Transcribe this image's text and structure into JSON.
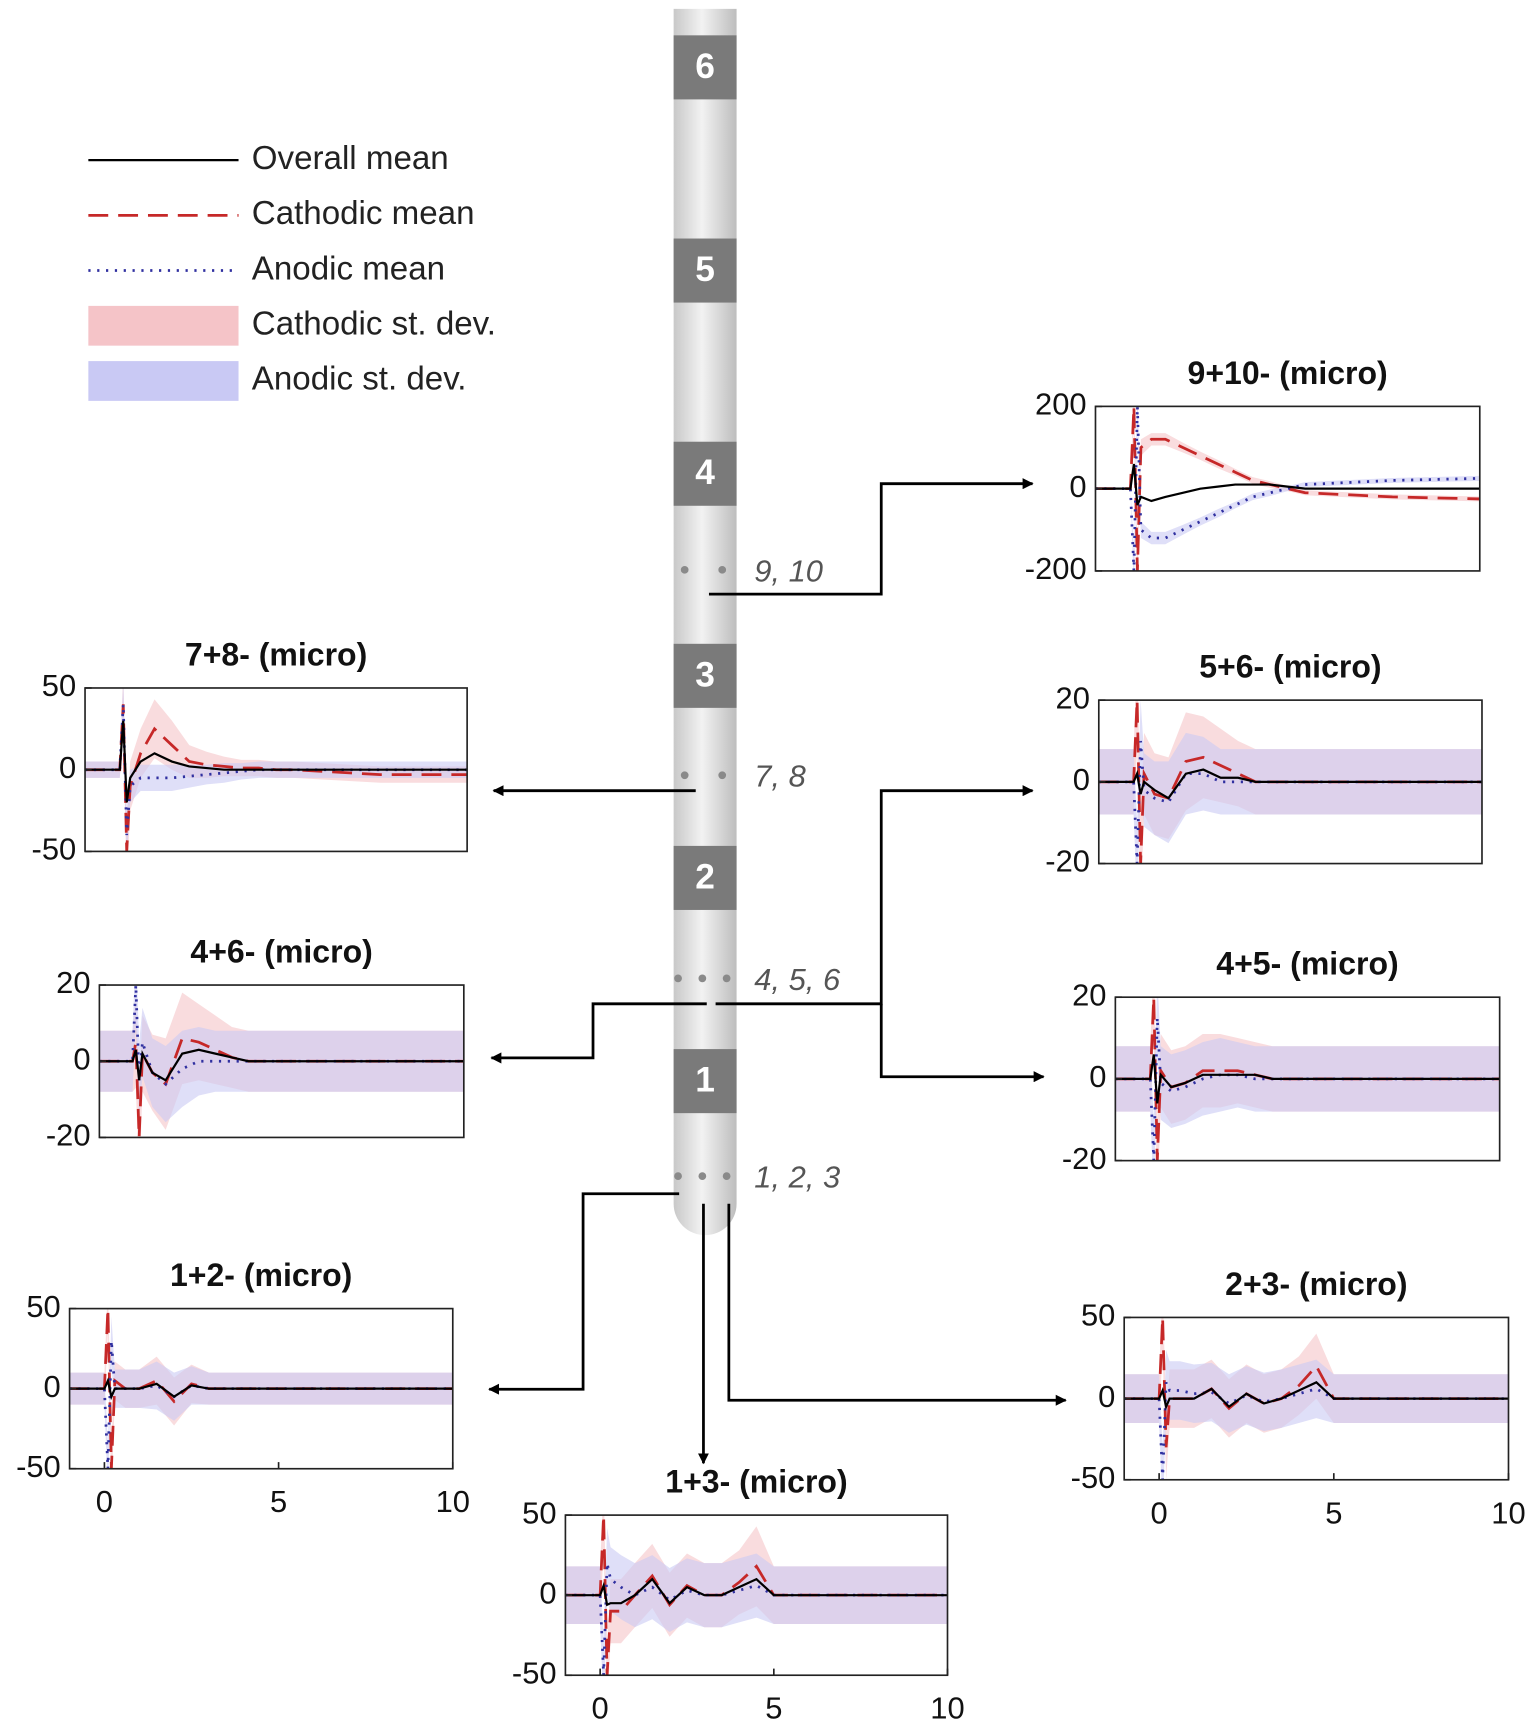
{
  "legend": [
    {
      "name": "Overall mean",
      "color": "#000000",
      "style": "solid"
    },
    {
      "name": "Cathodic mean",
      "color": "#c62828",
      "style": "dashed"
    },
    {
      "name": "Anodic mean",
      "color": "#3030a0",
      "style": "dotted"
    },
    {
      "name": "Cathodic st. dev.",
      "color": "#f5c4c8",
      "style": "band"
    },
    {
      "name": "Anodic st. dev.",
      "color": "#c9c9f4",
      "style": "band"
    }
  ],
  "electrode": {
    "segments": [
      "6",
      "5",
      "4",
      "3",
      "2",
      "1"
    ],
    "contacts": [
      "9, 10",
      "7, 8",
      "4, 5, 6",
      "1, 2, 3"
    ]
  },
  "chart_data": [
    {
      "type": "line",
      "title": "9+10- (micro)",
      "x": [
        -1,
        0,
        0.1,
        0.2,
        0.3,
        0.6,
        1,
        1.5,
        2,
        2.5,
        3,
        3.5,
        4,
        4.5,
        5,
        7.5,
        10
      ],
      "xlim": [
        -1,
        10
      ],
      "ylim": [
        -200,
        200
      ],
      "yticks": [
        200,
        0,
        -200
      ],
      "series": [
        {
          "values": [
            0,
            0,
            60,
            -40,
            -20,
            -30,
            -20,
            -10,
            0,
            5,
            10,
            10,
            10,
            5,
            0,
            0,
            0
          ]
        },
        {
          "values": [
            0,
            0,
            200,
            -200,
            100,
            120,
            120,
            100,
            80,
            60,
            40,
            20,
            10,
            0,
            -10,
            -20,
            -25
          ]
        },
        {
          "values": [
            0,
            0,
            -200,
            200,
            -100,
            -120,
            -120,
            -100,
            -80,
            -60,
            -40,
            -20,
            -10,
            0,
            10,
            20,
            25
          ]
        },
        {
          "values": [
            0,
            0,
            50,
            50,
            20,
            15,
            15,
            12,
            10,
            10,
            8,
            8,
            8,
            6,
            6,
            6,
            6
          ]
        },
        {
          "values": [
            0,
            0,
            50,
            50,
            20,
            15,
            15,
            12,
            10,
            10,
            8,
            8,
            8,
            6,
            6,
            6,
            6
          ]
        }
      ]
    },
    {
      "type": "line",
      "title": "7+8- (micro)",
      "x": [
        -1,
        0,
        0.1,
        0.2,
        0.3,
        0.6,
        1,
        1.5,
        2,
        2.5,
        3,
        3.5,
        4,
        4.5,
        5,
        7.5,
        10
      ],
      "xlim": [
        -1,
        10
      ],
      "ylim": [
        -50,
        50
      ],
      "yticks": [
        50,
        0,
        -50
      ],
      "series": [
        {
          "values": [
            0,
            0,
            30,
            -20,
            -5,
            5,
            10,
            5,
            2,
            1,
            0,
            0,
            0,
            0,
            0,
            0,
            0
          ]
        },
        {
          "values": [
            0,
            0,
            40,
            -50,
            -10,
            10,
            25,
            15,
            5,
            3,
            2,
            1,
            1,
            0,
            0,
            -3,
            -3
          ]
        },
        {
          "values": [
            0,
            0,
            40,
            -40,
            -10,
            -5,
            -5,
            -5,
            -4,
            -3,
            -2,
            -1,
            0,
            0,
            0,
            0,
            0
          ]
        },
        {
          "values": [
            5,
            5,
            20,
            20,
            15,
            15,
            18,
            15,
            10,
            8,
            6,
            5,
            5,
            5,
            5,
            5,
            5
          ]
        },
        {
          "values": [
            5,
            5,
            15,
            15,
            10,
            8,
            8,
            8,
            7,
            6,
            6,
            5,
            5,
            5,
            5,
            5,
            5
          ]
        }
      ]
    },
    {
      "type": "line",
      "title": "5+6- (micro)",
      "x": [
        -1,
        0,
        0.1,
        0.2,
        0.3,
        0.6,
        1,
        1.5,
        2,
        2.5,
        3,
        3.5,
        4,
        4.5,
        5,
        7.5,
        10
      ],
      "xlim": [
        -1,
        10
      ],
      "ylim": [
        -20,
        20
      ],
      "yticks": [
        20,
        0,
        -20
      ],
      "series": [
        {
          "values": [
            0,
            0,
            2,
            -3,
            0,
            -2,
            -4,
            2,
            3,
            1,
            1,
            0,
            0,
            0,
            0,
            0,
            0
          ]
        },
        {
          "values": [
            0,
            0,
            20,
            -20,
            2,
            -3,
            -4,
            5,
            6,
            4,
            2,
            0,
            0,
            0,
            0,
            0,
            0
          ]
        },
        {
          "values": [
            0,
            0,
            -20,
            10,
            -2,
            -4,
            -5,
            2,
            2,
            0,
            0,
            0,
            0,
            0,
            0,
            0,
            0
          ]
        },
        {
          "values": [
            8,
            8,
            12,
            12,
            10,
            10,
            10,
            12,
            10,
            9,
            8,
            8,
            8,
            8,
            8,
            8,
            8
          ]
        },
        {
          "values": [
            8,
            8,
            10,
            10,
            9,
            9,
            10,
            10,
            9,
            8,
            8,
            8,
            8,
            8,
            8,
            8,
            8
          ]
        }
      ]
    },
    {
      "type": "line",
      "title": "4+6- (micro)",
      "x": [
        -1,
        0,
        0.1,
        0.2,
        0.3,
        0.6,
        1,
        1.5,
        2,
        2.5,
        3,
        3.5,
        4,
        4.5,
        5,
        7.5,
        10
      ],
      "xlim": [
        -1,
        10
      ],
      "ylim": [
        -20,
        20
      ],
      "yticks": [
        20,
        0,
        -20
      ],
      "series": [
        {
          "values": [
            0,
            0,
            3,
            -5,
            2,
            -3,
            -5,
            2,
            3,
            2,
            1,
            0,
            0,
            0,
            0,
            0,
            0
          ]
        },
        {
          "values": [
            0,
            0,
            5,
            -20,
            2,
            -3,
            -6,
            6,
            5,
            3,
            1,
            0,
            0,
            0,
            0,
            0,
            0
          ]
        },
        {
          "values": [
            0,
            0,
            20,
            -5,
            5,
            -3,
            -6,
            -2,
            0,
            0,
            0,
            0,
            0,
            0,
            0,
            0,
            0
          ]
        },
        {
          "values": [
            8,
            8,
            12,
            12,
            10,
            10,
            12,
            12,
            10,
            9,
            8,
            8,
            8,
            8,
            8,
            8,
            8
          ]
        },
        {
          "values": [
            8,
            8,
            10,
            10,
            9,
            9,
            10,
            10,
            9,
            8,
            8,
            8,
            8,
            8,
            8,
            8,
            8
          ]
        }
      ]
    },
    {
      "type": "line",
      "title": "4+5- (micro)",
      "x": [
        -1,
        0,
        0.1,
        0.2,
        0.3,
        0.6,
        1,
        1.5,
        2,
        2.5,
        3,
        3.5,
        4,
        4.5,
        5,
        7.5,
        10
      ],
      "xlim": [
        -1,
        10
      ],
      "ylim": [
        -20,
        20
      ],
      "yticks": [
        20,
        0,
        -20
      ],
      "series": [
        {
          "values": [
            0,
            0,
            6,
            -6,
            1,
            -2,
            -1,
            1,
            1,
            1,
            1,
            0,
            0,
            0,
            0,
            0,
            0
          ]
        },
        {
          "values": [
            0,
            0,
            20,
            -20,
            2,
            -2,
            -1,
            2,
            2,
            2,
            1,
            0,
            0,
            0,
            0,
            0,
            0
          ]
        },
        {
          "values": [
            0,
            0,
            -20,
            15,
            -1,
            -3,
            -2,
            0,
            1,
            1,
            0,
            0,
            0,
            0,
            0,
            0,
            0
          ]
        },
        {
          "values": [
            8,
            8,
            10,
            10,
            9,
            9,
            9,
            9,
            9,
            8,
            8,
            8,
            8,
            8,
            8,
            8,
            8
          ]
        },
        {
          "values": [
            8,
            8,
            10,
            10,
            9,
            9,
            9,
            9,
            9,
            8,
            8,
            8,
            8,
            8,
            8,
            8,
            8
          ]
        }
      ]
    },
    {
      "type": "line",
      "title": "1+2- (micro)",
      "x": [
        -1,
        0,
        0.1,
        0.2,
        0.3,
        0.6,
        1,
        1.5,
        2,
        2.5,
        3,
        3.5,
        4,
        4.5,
        5,
        7.5,
        10
      ],
      "xlim": [
        -1,
        10
      ],
      "ylim": [
        -50,
        50
      ],
      "yticks": [
        50,
        0,
        -50
      ],
      "xticks": [
        0,
        5,
        10
      ],
      "series": [
        {
          "values": [
            0,
            0,
            5,
            -5,
            0,
            0,
            0,
            3,
            -5,
            2,
            0,
            0,
            0,
            0,
            0,
            0,
            0
          ]
        },
        {
          "values": [
            0,
            0,
            50,
            -50,
            5,
            0,
            0,
            5,
            -8,
            3,
            0,
            0,
            0,
            0,
            0,
            0,
            0
          ]
        },
        {
          "values": [
            0,
            0,
            -50,
            30,
            0,
            0,
            0,
            2,
            -5,
            2,
            0,
            0,
            0,
            0,
            0,
            0,
            0
          ]
        },
        {
          "values": [
            10,
            10,
            15,
            15,
            12,
            12,
            12,
            15,
            15,
            12,
            10,
            10,
            10,
            10,
            10,
            10,
            10
          ]
        },
        {
          "values": [
            10,
            10,
            15,
            15,
            12,
            12,
            12,
            15,
            15,
            12,
            10,
            10,
            10,
            10,
            10,
            10,
            10
          ]
        }
      ]
    },
    {
      "type": "line",
      "title": "2+3- (micro)",
      "x": [
        -1,
        0,
        0.1,
        0.2,
        0.3,
        0.6,
        1,
        1.5,
        2,
        2.5,
        3,
        3.5,
        4,
        4.5,
        5,
        7.5,
        10
      ],
      "xlim": [
        -1,
        10
      ],
      "ylim": [
        -50,
        50
      ],
      "yticks": [
        50,
        0,
        -50
      ],
      "xticks": [
        0,
        5,
        10
      ],
      "series": [
        {
          "values": [
            0,
            0,
            5,
            -5,
            0,
            0,
            0,
            6,
            -5,
            3,
            -3,
            0,
            5,
            10,
            0,
            0,
            0
          ]
        },
        {
          "values": [
            0,
            0,
            50,
            -30,
            0,
            0,
            0,
            6,
            -6,
            3,
            -3,
            0,
            8,
            20,
            0,
            0,
            0
          ]
        },
        {
          "values": [
            0,
            0,
            -50,
            10,
            5,
            5,
            3,
            4,
            -3,
            2,
            -2,
            0,
            3,
            6,
            0,
            0,
            0
          ]
        },
        {
          "values": [
            15,
            15,
            20,
            20,
            18,
            18,
            18,
            18,
            18,
            18,
            18,
            18,
            18,
            20,
            15,
            15,
            15
          ]
        },
        {
          "values": [
            15,
            15,
            20,
            20,
            18,
            18,
            18,
            18,
            18,
            18,
            18,
            18,
            18,
            18,
            15,
            15,
            15
          ]
        }
      ]
    },
    {
      "type": "line",
      "title": "1+3- (micro)",
      "x": [
        -1,
        0,
        0.1,
        0.2,
        0.3,
        0.6,
        1,
        1.5,
        2,
        2.5,
        3,
        3.5,
        4,
        4.5,
        5,
        7.5,
        10
      ],
      "xlim": [
        -1,
        10
      ],
      "ylim": [
        -50,
        50
      ],
      "yticks": [
        50,
        0,
        -50
      ],
      "xticks": [
        0,
        5,
        10
      ],
      "series": [
        {
          "values": [
            0,
            0,
            6,
            -6,
            -5,
            -5,
            0,
            10,
            -5,
            5,
            0,
            0,
            5,
            10,
            0,
            0,
            0
          ]
        },
        {
          "values": [
            0,
            0,
            50,
            -50,
            -10,
            -10,
            0,
            12,
            -6,
            6,
            0,
            0,
            8,
            18,
            0,
            0,
            0
          ]
        },
        {
          "values": [
            0,
            0,
            -50,
            20,
            10,
            5,
            0,
            5,
            -3,
            3,
            0,
            0,
            3,
            6,
            0,
            0,
            0
          ]
        },
        {
          "values": [
            18,
            18,
            20,
            20,
            20,
            20,
            20,
            20,
            20,
            20,
            20,
            20,
            20,
            25,
            18,
            18,
            18
          ]
        },
        {
          "values": [
            18,
            18,
            22,
            22,
            20,
            20,
            20,
            20,
            20,
            20,
            20,
            20,
            20,
            20,
            18,
            18,
            18
          ]
        }
      ]
    }
  ]
}
